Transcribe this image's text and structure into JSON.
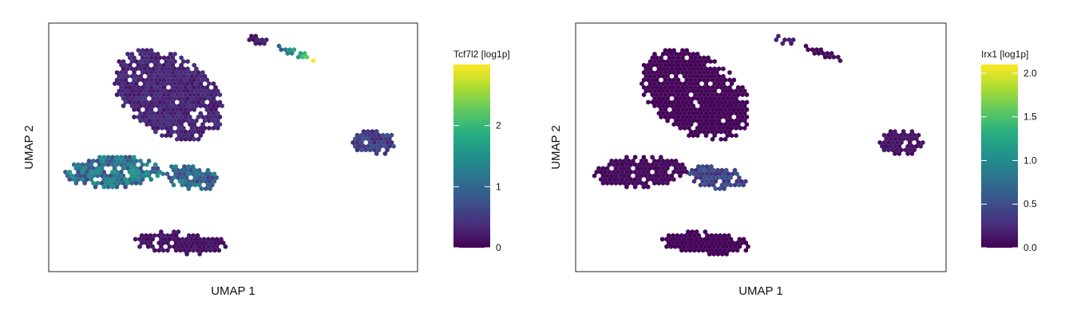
{
  "chart_data": [
    {
      "type": "hexbin",
      "xlabel": "UMAP 1",
      "ylabel": "UMAP 2",
      "colorbar": {
        "title": "Tcf7l2 [log1p]",
        "ticks": [
          0,
          1,
          2
        ],
        "tick_labels": [
          "0",
          "1",
          "2"
        ],
        "range": [
          0,
          3.0
        ]
      },
      "colormap": "viridis",
      "clusters": [
        {
          "name": "upper-left",
          "level": 0.3
        },
        {
          "name": "middle-left-left-lobe",
          "level": 1.1
        },
        {
          "name": "middle-left-right-lobe",
          "level": 1.0
        },
        {
          "name": "bottom",
          "level": 0.15
        },
        {
          "name": "right",
          "level": 0.55
        },
        {
          "name": "top-small",
          "level": 0.2
        },
        {
          "name": "top-streak",
          "level": 1.7
        }
      ]
    },
    {
      "type": "hexbin",
      "xlabel": "UMAP 1",
      "ylabel": "UMAP 2",
      "colorbar": {
        "title": "Irx1 [log1p]",
        "ticks": [
          0.0,
          0.5,
          1.0,
          1.5,
          2.0
        ],
        "tick_labels": [
          "0.0",
          "0.5",
          "1.0",
          "1.5",
          "2.0"
        ],
        "range": [
          0,
          2.1
        ]
      },
      "colormap": "viridis",
      "clusters": [
        {
          "name": "upper-left",
          "level": 0.02
        },
        {
          "name": "middle-left-left-lobe",
          "level": 0.05
        },
        {
          "name": "middle-left-right-lobe",
          "level": 0.45
        },
        {
          "name": "bottom",
          "level": 0.02
        },
        {
          "name": "right",
          "level": 0.1
        },
        {
          "name": "top-small",
          "level": 0.15
        },
        {
          "name": "top-streak",
          "level": 0.05
        }
      ]
    }
  ]
}
